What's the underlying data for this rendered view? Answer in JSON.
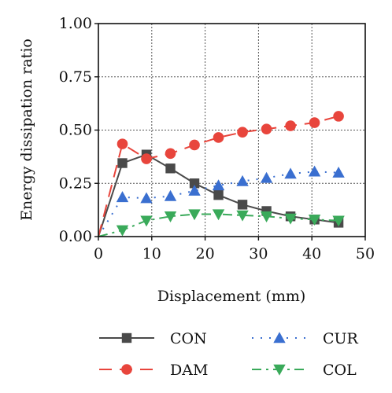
{
  "chart_data": {
    "type": "line",
    "xlabel": "Displacement (mm)",
    "ylabel": "Energy dissipation ratio",
    "xlim": [
      0,
      50
    ],
    "ylim": [
      0,
      1.0
    ],
    "x_ticks": [
      "0",
      "10",
      "20",
      "30",
      "40",
      "50"
    ],
    "y_ticks": [
      "0.00",
      "0.25",
      "0.50",
      "0.75",
      "1.00"
    ],
    "grid": true,
    "legend_position": "bottom",
    "series": [
      {
        "name": "CON",
        "color": "#4a4a4a",
        "line": "solid",
        "marker": "square",
        "x": [
          0,
          4.5,
          9,
          13.5,
          18,
          22.5,
          27,
          31.5,
          36,
          40.5,
          45
        ],
        "y": [
          0.0,
          0.345,
          0.385,
          0.32,
          0.25,
          0.195,
          0.15,
          0.12,
          0.095,
          0.08,
          0.065
        ]
      },
      {
        "name": "CUR",
        "color": "#3a6fd0",
        "line": "dotted",
        "marker": "triangle-up",
        "x": [
          0,
          4.5,
          9,
          13.5,
          18,
          22.5,
          27,
          31.5,
          36,
          40.5,
          45
        ],
        "y": [
          0.0,
          0.185,
          0.18,
          0.19,
          0.215,
          0.24,
          0.26,
          0.275,
          0.295,
          0.305,
          0.3
        ]
      },
      {
        "name": "DAM",
        "color": "#e8453c",
        "line": "dashed",
        "marker": "circle",
        "x": [
          0,
          4.5,
          9,
          13.5,
          18,
          22.5,
          27,
          31.5,
          36,
          40.5,
          45
        ],
        "y": [
          0.0,
          0.435,
          0.365,
          0.39,
          0.43,
          0.465,
          0.49,
          0.505,
          0.52,
          0.535,
          0.565
        ]
      },
      {
        "name": "COL",
        "color": "#3aaa5a",
        "line": "dashdot",
        "marker": "triangle-down",
        "x": [
          0,
          4.5,
          9,
          13.5,
          18,
          22.5,
          27,
          31.5,
          36,
          40.5,
          45
        ],
        "y": [
          0.0,
          0.03,
          0.075,
          0.095,
          0.105,
          0.105,
          0.1,
          0.095,
          0.085,
          0.08,
          0.075
        ]
      }
    ]
  }
}
